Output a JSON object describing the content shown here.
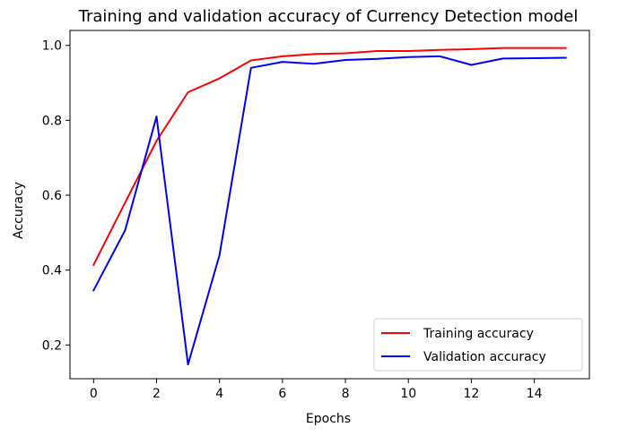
{
  "chart_data": {
    "type": "line",
    "title": "Training and validation accuracy of Currency Detection model",
    "xlabel": "Epochs",
    "ylabel": "Accuracy",
    "xlim": [
      -0.75,
      15.75
    ],
    "ylim": [
      0.11,
      1.04
    ],
    "xticks": [
      0,
      2,
      4,
      6,
      8,
      10,
      12,
      14
    ],
    "yticks": [
      0.2,
      0.4,
      0.6,
      0.8,
      1.0
    ],
    "xtick_labels": [
      "0",
      "2",
      "4",
      "6",
      "8",
      "10",
      "12",
      "14"
    ],
    "ytick_labels": [
      "0.2",
      "0.4",
      "0.6",
      "0.8",
      "1.0"
    ],
    "grid": false,
    "legend_position": "lower-right",
    "x": [
      0,
      1,
      2,
      3,
      4,
      5,
      6,
      7,
      8,
      9,
      10,
      11,
      12,
      13,
      14,
      15
    ],
    "series": [
      {
        "name": "Training accuracy",
        "color": "#ff0000",
        "values": [
          0.414,
          0.58,
          0.745,
          0.875,
          0.912,
          0.96,
          0.971,
          0.977,
          0.979,
          0.985,
          0.985,
          0.988,
          0.99,
          0.993,
          0.993,
          0.993
        ]
      },
      {
        "name": "Validation accuracy",
        "color": "#0000ff",
        "values": [
          0.346,
          0.506,
          0.81,
          0.148,
          0.44,
          0.94,
          0.956,
          0.951,
          0.961,
          0.964,
          0.969,
          0.971,
          0.948,
          0.965,
          0.966,
          0.967
        ]
      }
    ]
  }
}
